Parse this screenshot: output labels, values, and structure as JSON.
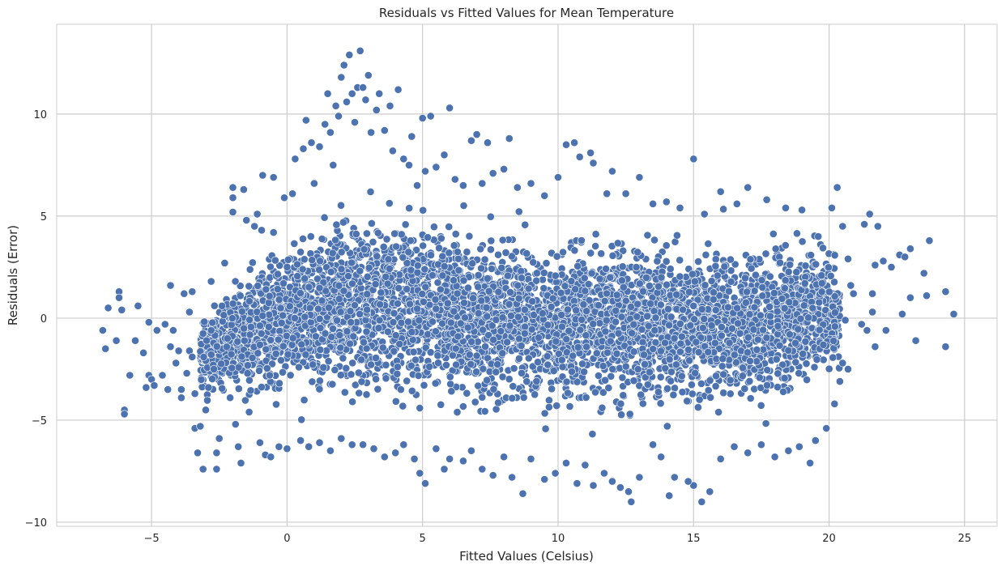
{
  "chart_data": {
    "type": "scatter",
    "title": "Residuals vs Fitted Values for Mean Temperature",
    "xlabel": "Fitted Values (Celsius)",
    "ylabel": "Residuals (Error)",
    "xlim": [
      -8.5,
      26.2
    ],
    "ylim": [
      -10.2,
      14.4
    ],
    "x_ticks": [
      -5,
      0,
      5,
      10,
      15,
      20,
      25
    ],
    "x_tick_labels": [
      "−5",
      "0",
      "5",
      "10",
      "15",
      "20",
      "25"
    ],
    "y_ticks": [
      -10,
      -5,
      0,
      5,
      10
    ],
    "y_tick_labels": [
      "−10",
      "−5",
      "0",
      "5",
      "10"
    ],
    "grid": true,
    "legend": "none",
    "colors": {
      "marker": "#4c72b0",
      "marker_edge": "#ffffff",
      "grid": "#cccccc",
      "axes_edge": "#cccccc",
      "background": "#ffffff"
    },
    "series": [
      {
        "points": [
          [
            -6.8,
            -0.6
          ],
          [
            -6.7,
            -1.5
          ],
          [
            -6.6,
            0.5
          ],
          [
            -6.2,
            1.3
          ],
          [
            -6.2,
            1.0
          ],
          [
            -6.1,
            0.4
          ],
          [
            -6.3,
            -1.1
          ],
          [
            -6.0,
            -4.5
          ],
          [
            -6.0,
            -4.7
          ],
          [
            -5.8,
            -2.8
          ],
          [
            -5.6,
            -1.1
          ],
          [
            -5.5,
            0.6
          ],
          [
            -5.3,
            -1.7
          ],
          [
            -5.2,
            -3.4
          ],
          [
            -5.1,
            -0.2
          ],
          [
            -5.1,
            -2.8
          ],
          [
            -5.0,
            -3.0
          ],
          [
            -4.9,
            -3.3
          ],
          [
            -4.8,
            -0.6
          ],
          [
            -4.6,
            -2.8
          ],
          [
            -4.5,
            -0.3
          ],
          [
            -4.4,
            -3.5
          ],
          [
            -4.3,
            1.6
          ],
          [
            -4.3,
            -1.4
          ],
          [
            -4.2,
            -0.6
          ],
          [
            -4.1,
            -2.2
          ],
          [
            -4.0,
            -1.6
          ],
          [
            -3.9,
            -3.5
          ],
          [
            -3.9,
            -3.9
          ],
          [
            -3.8,
            1.2
          ],
          [
            -3.7,
            -2.7
          ],
          [
            -3.6,
            0.3
          ],
          [
            -3.6,
            -1.6
          ],
          [
            -3.5,
            1.3
          ],
          [
            -3.5,
            -1.9
          ],
          [
            -3.4,
            -5.4
          ],
          [
            -3.4,
            -3.7
          ],
          [
            -3.3,
            -6.6
          ],
          [
            -3.2,
            -5.3
          ],
          [
            -3.1,
            -7.4
          ],
          [
            -3.0,
            -4.5
          ],
          [
            -2.9,
            -3.4
          ],
          [
            -2.8,
            1.8
          ],
          [
            -2.8,
            -0.6
          ],
          [
            -2.7,
            -2.5
          ],
          [
            -2.6,
            -7.4
          ],
          [
            -2.6,
            -6.6
          ],
          [
            -2.5,
            -5.9
          ],
          [
            -2.4,
            0.6
          ],
          [
            -2.3,
            2.7
          ],
          [
            -2.2,
            -1.0
          ],
          [
            -2.1,
            -3.9
          ],
          [
            -2.0,
            5.9
          ],
          [
            -2.0,
            6.4
          ],
          [
            -2.0,
            5.2
          ],
          [
            -1.9,
            -5.2
          ],
          [
            -1.8,
            -6.3
          ],
          [
            -1.7,
            -7.1
          ],
          [
            -1.6,
            6.3
          ],
          [
            -1.5,
            4.8
          ],
          [
            -1.4,
            -4.6
          ],
          [
            -1.2,
            4.5
          ],
          [
            -1.1,
            5.1
          ],
          [
            -1.0,
            -6.1
          ],
          [
            -0.9,
            7.0
          ],
          [
            -0.8,
            -6.7
          ],
          [
            -0.6,
            -6.8
          ],
          [
            -0.5,
            6.9
          ],
          [
            -0.5,
            4.2
          ],
          [
            -0.3,
            -6.3
          ],
          [
            -0.1,
            5.9
          ],
          [
            0.0,
            -6.4
          ],
          [
            0.2,
            6.1
          ],
          [
            0.3,
            7.8
          ],
          [
            0.5,
            -6.0
          ],
          [
            0.6,
            8.3
          ],
          [
            0.7,
            9.7
          ],
          [
            0.9,
            8.6
          ],
          [
            1.0,
            6.6
          ],
          [
            1.2,
            8.4
          ],
          [
            1.4,
            9.5
          ],
          [
            1.5,
            11.0
          ],
          [
            1.6,
            9.1
          ],
          [
            1.7,
            7.5
          ],
          [
            1.8,
            10.4
          ],
          [
            1.9,
            9.9
          ],
          [
            2.0,
            11.8
          ],
          [
            2.1,
            12.4
          ],
          [
            2.2,
            10.6
          ],
          [
            2.3,
            12.9
          ],
          [
            2.4,
            11.0
          ],
          [
            2.5,
            9.6
          ],
          [
            2.6,
            11.3
          ],
          [
            2.7,
            13.1
          ],
          [
            2.8,
            11.3
          ],
          [
            2.9,
            10.7
          ],
          [
            3.0,
            11.9
          ],
          [
            3.1,
            9.1
          ],
          [
            3.3,
            10.2
          ],
          [
            3.4,
            11.0
          ],
          [
            3.6,
            9.2
          ],
          [
            3.8,
            10.4
          ],
          [
            3.9,
            8.2
          ],
          [
            4.1,
            11.2
          ],
          [
            4.3,
            7.8
          ],
          [
            4.5,
            7.5
          ],
          [
            4.6,
            8.9
          ],
          [
            4.8,
            6.5
          ],
          [
            5.0,
            9.8
          ],
          [
            5.1,
            7.2
          ],
          [
            5.3,
            9.9
          ],
          [
            5.5,
            7.4
          ],
          [
            5.8,
            8.0
          ],
          [
            6.0,
            10.3
          ],
          [
            6.2,
            6.8
          ],
          [
            6.5,
            6.5
          ],
          [
            6.8,
            8.7
          ],
          [
            7.0,
            9.0
          ],
          [
            7.2,
            6.6
          ],
          [
            7.4,
            8.6
          ],
          [
            7.6,
            7.1
          ],
          [
            8.0,
            7.3
          ],
          [
            8.2,
            8.8
          ],
          [
            8.5,
            6.4
          ],
          [
            9.0,
            6.6
          ],
          [
            9.5,
            6.0
          ],
          [
            10.0,
            6.9
          ],
          [
            10.3,
            8.5
          ],
          [
            10.6,
            8.6
          ],
          [
            10.8,
            7.9
          ],
          [
            11.2,
            8.1
          ],
          [
            11.3,
            7.6
          ],
          [
            11.8,
            6.1
          ],
          [
            12.0,
            7.2
          ],
          [
            12.5,
            6.1
          ],
          [
            13.0,
            6.9
          ],
          [
            13.5,
            5.6
          ],
          [
            14.0,
            5.7
          ],
          [
            14.5,
            5.4
          ],
          [
            15.0,
            7.8
          ],
          [
            15.4,
            5.1
          ],
          [
            16.0,
            6.2
          ],
          [
            16.6,
            5.6
          ],
          [
            17.0,
            6.4
          ],
          [
            17.7,
            5.8
          ],
          [
            18.4,
            5.4
          ],
          [
            19.0,
            5.3
          ],
          [
            19.6,
            4.0
          ],
          [
            20.1,
            5.4
          ],
          [
            20.3,
            6.4
          ],
          [
            20.5,
            4.5
          ],
          [
            20.7,
            2.9
          ],
          [
            20.8,
            1.6
          ],
          [
            20.9,
            1.2
          ],
          [
            20.6,
            -0.1
          ],
          [
            20.5,
            -2.2
          ],
          [
            20.7,
            -2.5
          ],
          [
            20.4,
            -3.1
          ],
          [
            20.2,
            -4.2
          ],
          [
            19.9,
            -5.4
          ],
          [
            19.5,
            -6.0
          ],
          [
            19.3,
            -7.1
          ],
          [
            18.9,
            -6.3
          ],
          [
            18.5,
            -6.5
          ],
          [
            18.0,
            -6.8
          ],
          [
            17.5,
            -6.2
          ],
          [
            17.0,
            -6.6
          ],
          [
            16.5,
            -6.3
          ],
          [
            16.0,
            -6.9
          ],
          [
            15.6,
            -8.5
          ],
          [
            15.3,
            -9.0
          ],
          [
            15.0,
            -8.2
          ],
          [
            14.8,
            -8.0
          ],
          [
            14.3,
            -7.8
          ],
          [
            14.1,
            -8.7
          ],
          [
            13.8,
            -6.8
          ],
          [
            13.5,
            -6.2
          ],
          [
            13.0,
            -7.8
          ],
          [
            12.7,
            -9.0
          ],
          [
            12.6,
            -8.5
          ],
          [
            12.3,
            -8.3
          ],
          [
            12.0,
            -8.0
          ],
          [
            11.7,
            -7.6
          ],
          [
            11.3,
            -8.2
          ],
          [
            11.0,
            -7.2
          ],
          [
            10.7,
            -8.1
          ],
          [
            10.3,
            -7.1
          ],
          [
            9.9,
            -7.6
          ],
          [
            9.5,
            -7.9
          ],
          [
            9.0,
            -6.9
          ],
          [
            8.7,
            -8.6
          ],
          [
            8.3,
            -7.8
          ],
          [
            8.0,
            -6.8
          ],
          [
            7.6,
            -7.7
          ],
          [
            7.2,
            -7.4
          ],
          [
            6.8,
            -6.5
          ],
          [
            6.5,
            -7.0
          ],
          [
            6.0,
            -6.9
          ],
          [
            5.8,
            -7.4
          ],
          [
            5.5,
            -6.4
          ],
          [
            5.1,
            -8.1
          ],
          [
            4.9,
            -7.6
          ],
          [
            4.7,
            -6.9
          ],
          [
            4.3,
            -6.2
          ],
          [
            4.0,
            -6.6
          ],
          [
            3.6,
            -6.8
          ],
          [
            3.2,
            -6.4
          ],
          [
            2.8,
            -6.2
          ],
          [
            2.4,
            -6.2
          ],
          [
            2.0,
            -5.9
          ],
          [
            1.6,
            -6.5
          ],
          [
            1.2,
            -6.1
          ],
          [
            0.8,
            -6.3
          ],
          [
            21.2,
            -0.3
          ],
          [
            21.4,
            -0.6
          ],
          [
            21.6,
            0.3
          ],
          [
            21.6,
            1.2
          ],
          [
            21.7,
            2.6
          ],
          [
            21.8,
            4.5
          ],
          [
            21.5,
            5.1
          ],
          [
            21.3,
            4.6
          ],
          [
            21.7,
            -1.4
          ],
          [
            22.0,
            2.8
          ],
          [
            22.3,
            2.5
          ],
          [
            22.6,
            3.1
          ],
          [
            22.8,
            3.0
          ],
          [
            22.7,
            0.2
          ],
          [
            22.1,
            -0.6
          ],
          [
            23.0,
            3.4
          ],
          [
            23.0,
            1.0
          ],
          [
            23.2,
            -1.1
          ],
          [
            23.5,
            2.2
          ],
          [
            23.7,
            3.8
          ],
          [
            23.6,
            1.1
          ],
          [
            24.3,
            -1.4
          ],
          [
            24.3,
            1.3
          ],
          [
            24.6,
            0.2
          ]
        ]
      }
    ]
  }
}
